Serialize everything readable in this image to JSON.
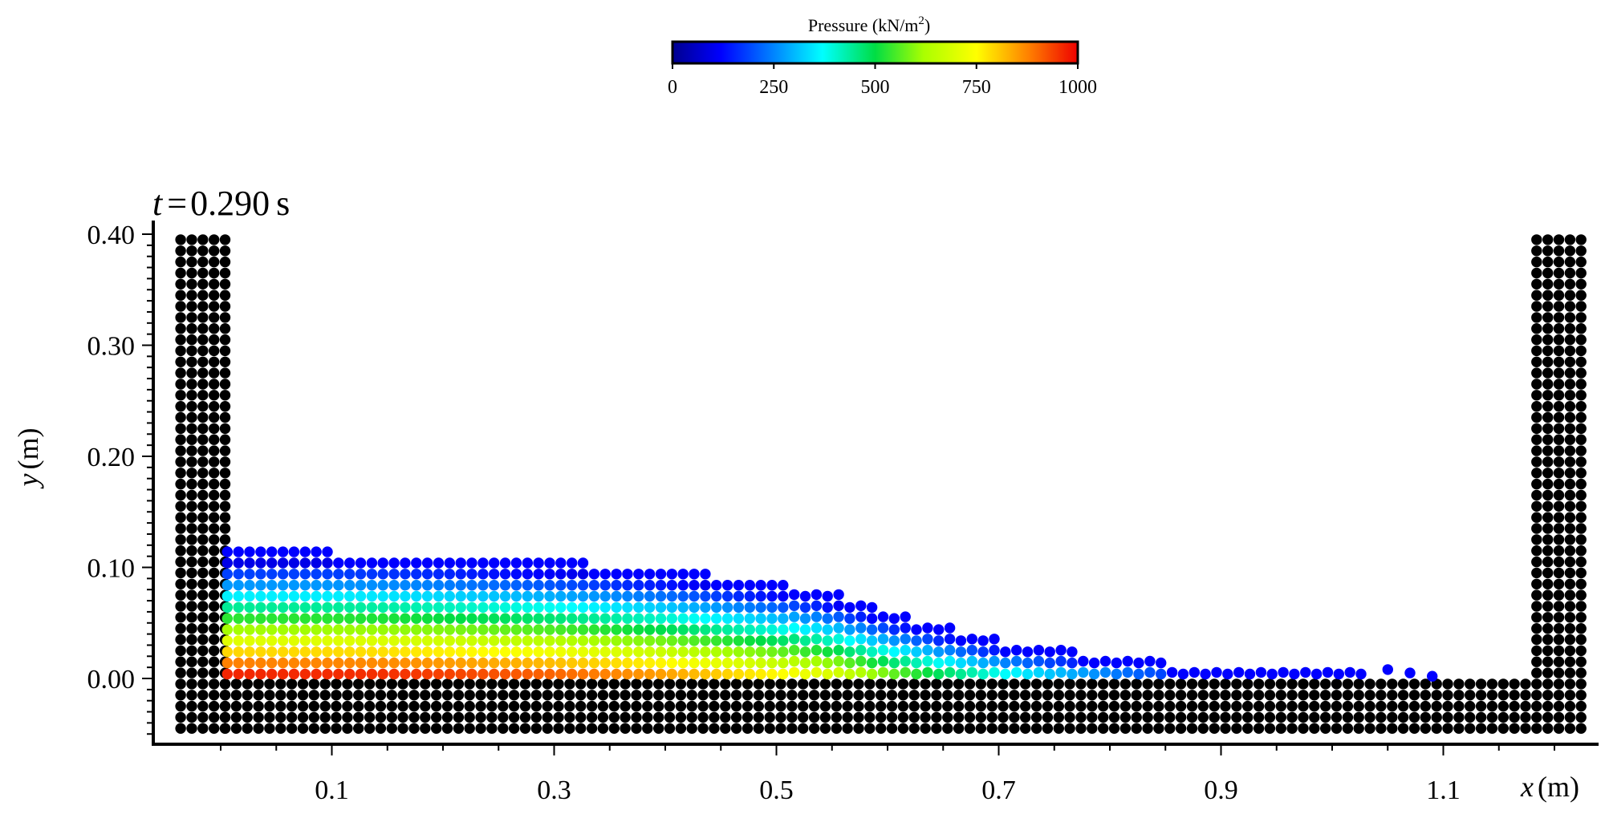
{
  "chart_data": {
    "type": "scatter",
    "time": {
      "symbol": "t",
      "value": "0.290",
      "unit": "s"
    },
    "colorbar": {
      "title": "Pressure (kN/m",
      "title_sup": "2",
      "title_end": ")",
      "range": [
        0,
        1000
      ],
      "ticks": [
        "0",
        "250",
        "500",
        "750",
        "1000"
      ],
      "colormap": "jet"
    },
    "xlabel": {
      "var": "x",
      "unit": "(m)"
    },
    "ylabel": {
      "var": "y",
      "unit": "(m)"
    },
    "xlim": [
      -0.04,
      1.29
    ],
    "ylim": [
      -0.06,
      0.41
    ],
    "xticks": [
      "0.1",
      "0.3",
      "0.5",
      "0.7",
      "0.9",
      "1.1"
    ],
    "yticks": [
      "0.00",
      "0.10",
      "0.20",
      "0.30",
      "0.40"
    ],
    "particle_spacing": 0.01,
    "fluid": {
      "free_surface": [
        [
          0.0,
          0.115
        ],
        [
          0.1,
          0.115
        ],
        [
          0.2,
          0.112
        ],
        [
          0.3,
          0.107
        ],
        [
          0.4,
          0.1
        ],
        [
          0.5,
          0.088
        ],
        [
          0.55,
          0.078
        ],
        [
          0.6,
          0.062
        ],
        [
          0.65,
          0.048
        ],
        [
          0.7,
          0.035
        ],
        [
          0.75,
          0.028
        ],
        [
          0.8,
          0.022
        ],
        [
          0.85,
          0.015
        ],
        [
          0.9,
          0.01
        ],
        [
          0.95,
          0.008
        ],
        [
          1.0,
          0.006
        ],
        [
          1.03,
          0.004
        ]
      ],
      "splash_x": [
        1.05,
        1.07,
        1.09
      ],
      "pressure_profile": [
        [
          0.0,
          1000
        ],
        [
          0.15,
          990
        ],
        [
          0.3,
          940
        ],
        [
          0.4,
          880
        ],
        [
          0.5,
          790
        ],
        [
          0.55,
          730
        ],
        [
          0.6,
          620
        ],
        [
          0.65,
          520
        ],
        [
          0.7,
          430
        ],
        [
          0.75,
          360
        ],
        [
          0.8,
          300
        ],
        [
          0.85,
          250
        ],
        [
          0.9,
          200
        ],
        [
          1.0,
          130
        ],
        [
          1.1,
          80
        ]
      ]
    },
    "walls": [
      {
        "name": "left-wall",
        "x_range": [
          -0.04,
          0.0
        ],
        "y_range": [
          -0.045,
          0.4
        ]
      },
      {
        "name": "floor",
        "x_range": [
          0.0,
          1.17
        ],
        "y_range": [
          -0.045,
          -0.005
        ]
      },
      {
        "name": "right-wall",
        "x_range": [
          1.18,
          1.22
        ],
        "y_range": [
          -0.045,
          0.4
        ]
      }
    ],
    "colors": {
      "wall": "#000000",
      "surface": "#0000ff"
    }
  }
}
